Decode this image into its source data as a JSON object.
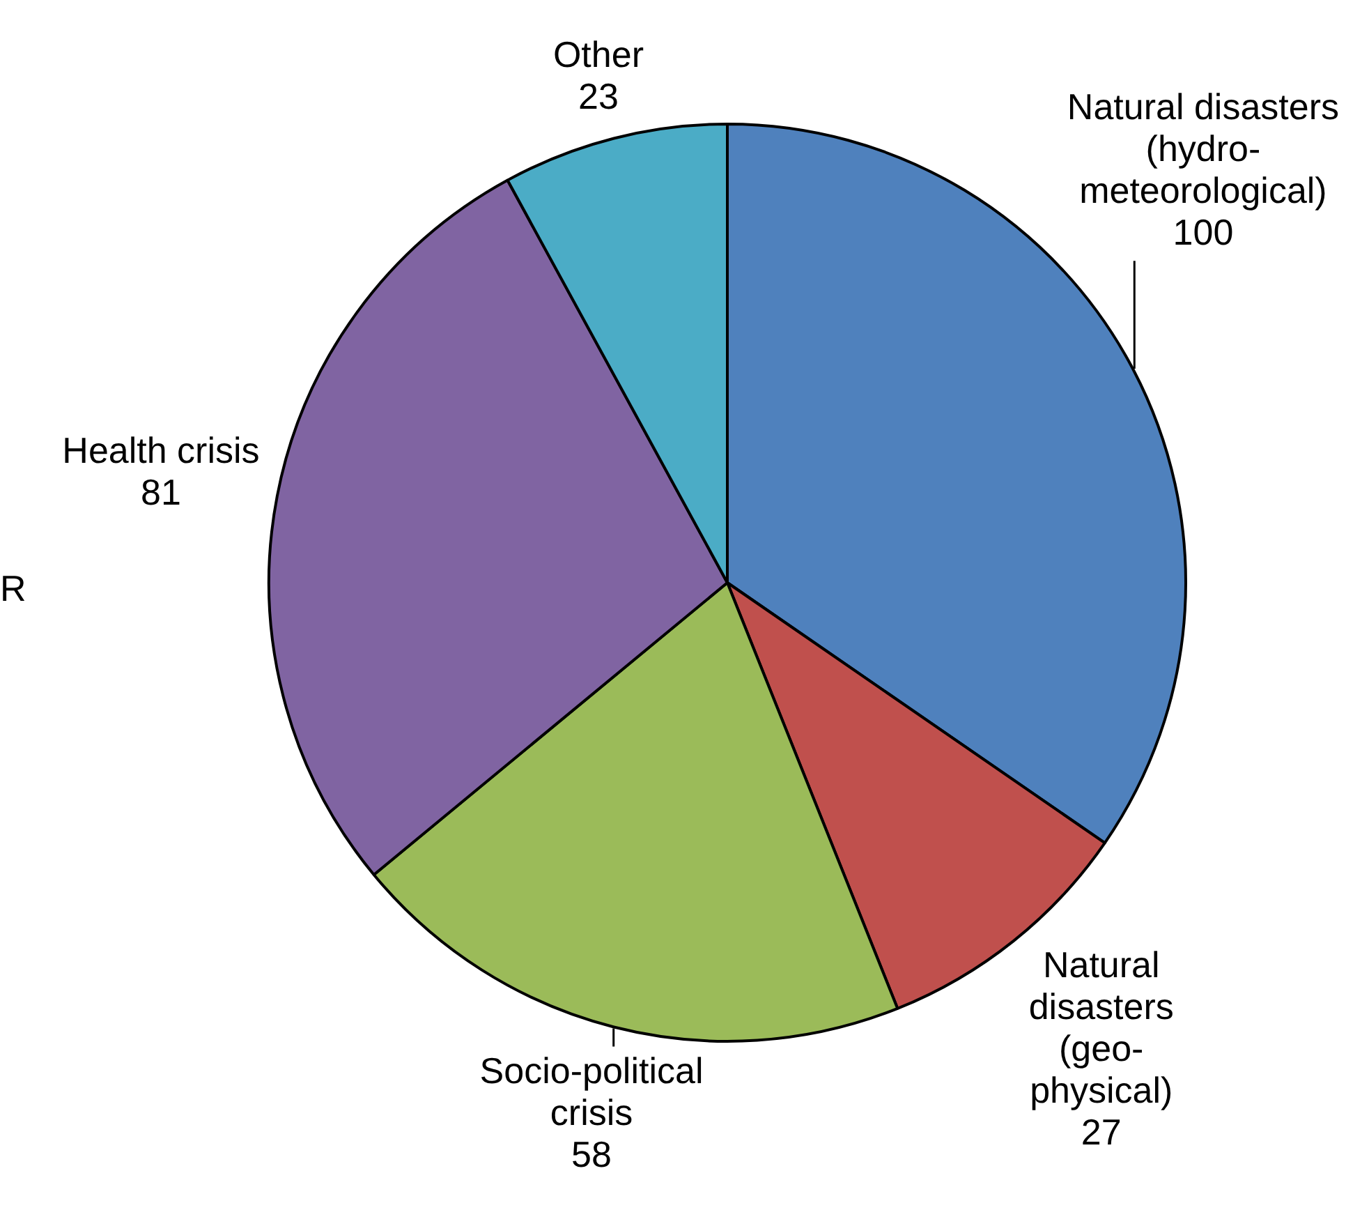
{
  "chart_data": {
    "type": "pie",
    "categories": [
      "Natural disasters\n(hydro-\nmeteorological)",
      "Natural\ndisasters\n(geo-\nphysical)",
      "Socio-political\ncrisis",
      "Health crisis",
      "Other"
    ],
    "values": [
      100,
      27,
      58,
      81,
      23
    ],
    "colors": [
      "#4f81bd",
      "#c0504d",
      "#9bbb59",
      "#8064a2",
      "#4bacc6"
    ],
    "data_labels": true,
    "legend": false,
    "annotations": [
      "R"
    ]
  }
}
